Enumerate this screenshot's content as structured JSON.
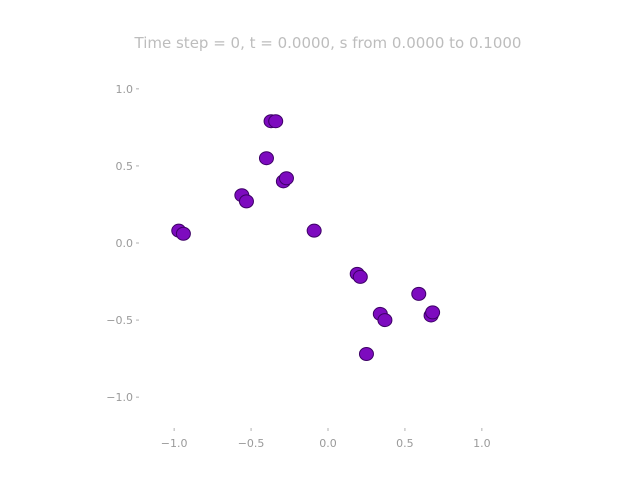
{
  "chart_data": {
    "type": "scatter",
    "title": "Time step = 0, t = 0.0000, s from 0.0000 to 0.1000",
    "xlabel": "",
    "ylabel": "",
    "xlim": [
      -1.3,
      1.3
    ],
    "ylim": [
      -1.2,
      1.2
    ],
    "x_ticks": [
      -1.0,
      -0.5,
      0.0,
      0.5,
      1.0
    ],
    "x_tick_labels": [
      "−1.0",
      "−0.5",
      "0.0",
      "0.5",
      "1.0"
    ],
    "y_ticks": [
      1.0,
      0.5,
      0.0,
      -0.5,
      -1.0
    ],
    "y_tick_labels": [
      "1.0",
      "0.5",
      "0.0",
      "−0.5",
      "−1.0"
    ],
    "grid": false,
    "colors": {
      "fill": "#7d0bbf",
      "edge": "#3d0066",
      "tick": "#9a9a9a",
      "title": "#bdbdbd"
    },
    "series": [
      {
        "points": [
          {
            "x": -0.97,
            "y": 0.08
          },
          {
            "x": -0.94,
            "y": 0.06
          },
          {
            "x": -0.56,
            "y": 0.31
          },
          {
            "x": -0.53,
            "y": 0.27
          },
          {
            "x": -0.4,
            "y": 0.55
          },
          {
            "x": -0.37,
            "y": 0.79
          },
          {
            "x": -0.34,
            "y": 0.79
          },
          {
            "x": -0.29,
            "y": 0.4
          },
          {
            "x": -0.27,
            "y": 0.42
          },
          {
            "x": -0.09,
            "y": 0.08
          },
          {
            "x": 0.19,
            "y": -0.2
          },
          {
            "x": 0.21,
            "y": -0.22
          },
          {
            "x": 0.25,
            "y": -0.72
          },
          {
            "x": 0.34,
            "y": -0.46
          },
          {
            "x": 0.37,
            "y": -0.5
          },
          {
            "x": 0.59,
            "y": -0.33
          },
          {
            "x": 0.67,
            "y": -0.47
          },
          {
            "x": 0.68,
            "y": -0.45
          }
        ]
      }
    ]
  }
}
